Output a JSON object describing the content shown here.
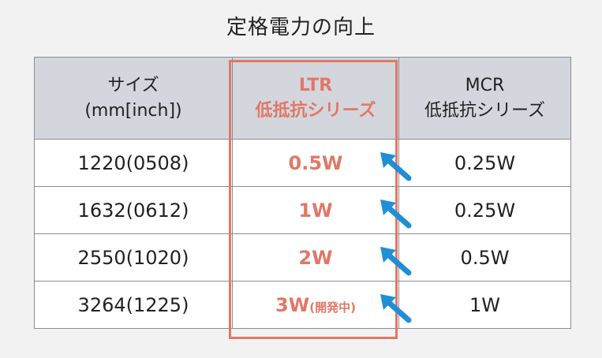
{
  "title": "定格電力の向上",
  "table": {
    "headers": [
      {
        "line1": "サイズ",
        "line2": "(mm[inch])"
      },
      {
        "line1": "LTR",
        "line2": "低抵抗シリーズ"
      },
      {
        "line1": "MCR",
        "line2": "低抵抗シリーズ"
      }
    ],
    "rows": [
      {
        "size": "1220(0508)",
        "ltr": "0.5W",
        "ltr_note": "",
        "mcr": "0.25W"
      },
      {
        "size": "1632(0612)",
        "ltr": "1W",
        "ltr_note": "",
        "mcr": "0.25W"
      },
      {
        "size": "2550(1020)",
        "ltr": "2W",
        "ltr_note": "",
        "mcr": "0.5W"
      },
      {
        "size": "3264(1225)",
        "ltr": "3W",
        "ltr_note": "(開発中)",
        "mcr": "1W"
      }
    ]
  },
  "colors": {
    "highlight": "#e07866",
    "arrow": "#1f8fd6",
    "header_bg": "#d3d6dc"
  },
  "icons": {
    "row_arrow": "arrow-up-left-icon"
  }
}
